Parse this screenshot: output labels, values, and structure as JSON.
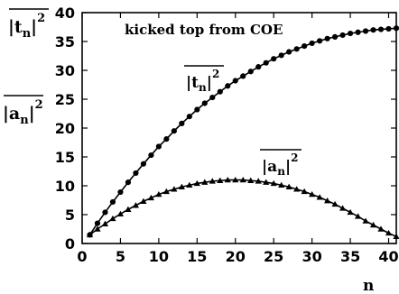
{
  "chart_data": {
    "type": "line",
    "title": "kicked top from COE",
    "xlabel": "n",
    "xlim": [
      0,
      41
    ],
    "ylim": [
      0,
      40
    ],
    "xticks": [
      0,
      5,
      10,
      15,
      20,
      25,
      30,
      35,
      40
    ],
    "yticks": [
      0,
      5,
      10,
      15,
      20,
      25,
      30,
      35,
      40
    ],
    "grid": false,
    "series": [
      {
        "name": "|t_n|^2",
        "marker": "circle",
        "x": [
          1,
          2,
          3,
          4,
          5,
          6,
          7,
          8,
          9,
          10,
          11,
          12,
          13,
          14,
          15,
          16,
          17,
          18,
          19,
          20,
          21,
          22,
          23,
          24,
          25,
          26,
          27,
          28,
          29,
          30,
          31,
          32,
          33,
          34,
          35,
          36,
          37,
          38,
          39,
          40,
          41
        ],
        "values": [
          1.5,
          3.5,
          5.4,
          7.2,
          8.9,
          10.6,
          12.2,
          13.8,
          15.3,
          16.8,
          18.1,
          19.5,
          20.8,
          22.0,
          23.2,
          24.3,
          25.3,
          26.3,
          27.3,
          28.2,
          29.0,
          29.8,
          30.6,
          31.3,
          32.0,
          32.6,
          33.2,
          33.7,
          34.2,
          34.7,
          35.1,
          35.5,
          35.8,
          36.1,
          36.4,
          36.6,
          36.8,
          37.0,
          37.1,
          37.2,
          37.3
        ]
      },
      {
        "name": "|a_n|^2",
        "marker": "triangle",
        "x": [
          1,
          2,
          3,
          4,
          5,
          6,
          7,
          8,
          9,
          10,
          11,
          12,
          13,
          14,
          15,
          16,
          17,
          18,
          19,
          20,
          21,
          22,
          23,
          24,
          25,
          26,
          27,
          28,
          29,
          30,
          31,
          32,
          33,
          34,
          35,
          36,
          37,
          38,
          39,
          40,
          41
        ],
        "values": [
          1.5,
          2.5,
          3.4,
          4.3,
          5.1,
          5.9,
          6.6,
          7.3,
          7.9,
          8.5,
          9.0,
          9.4,
          9.8,
          10.1,
          10.4,
          10.6,
          10.8,
          10.9,
          11.0,
          11.0,
          11.0,
          10.9,
          10.8,
          10.6,
          10.4,
          10.1,
          9.8,
          9.4,
          9.0,
          8.5,
          8.0,
          7.4,
          6.8,
          6.1,
          5.4,
          4.7,
          3.9,
          3.2,
          2.5,
          1.8,
          1.2
        ]
      }
    ],
    "annotations": [
      {
        "id": "t",
        "text_main": "|t",
        "text_sub": "n",
        "text_sup": "2",
        "overline": true
      },
      {
        "id": "a",
        "text_main": "|a",
        "text_sub": "n",
        "text_sup": "2",
        "overline": true
      }
    ]
  }
}
